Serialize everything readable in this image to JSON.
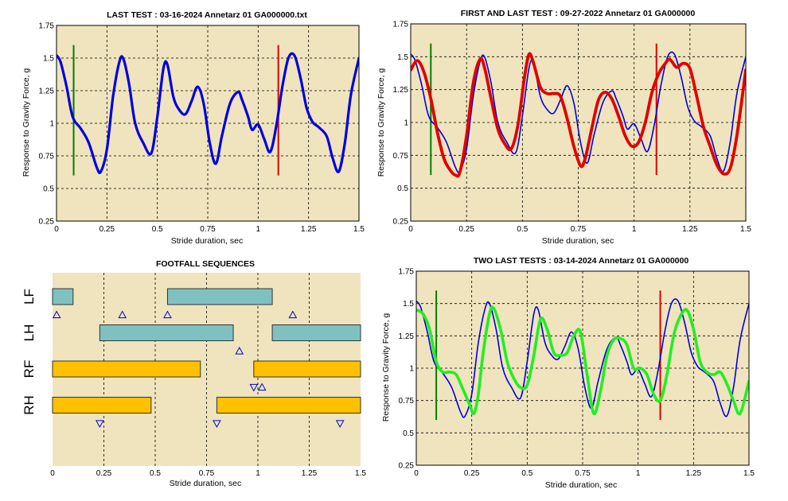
{
  "chart_data": [
    {
      "id": "p1",
      "type": "line",
      "title": "LAST TEST : 03-16-2024 Annetarz 01 GA000000.txt",
      "xlabel": "Stride duration, sec",
      "ylabel": "Response to Gravity Force, g",
      "xlim": [
        0,
        1.5
      ],
      "ylim": [
        0.25,
        1.75
      ],
      "xticks": [
        "0",
        "0.25",
        "0.5",
        "0.75",
        "1",
        "1.25",
        "1.5"
      ],
      "yticks": [
        "0.25",
        "0.5",
        "0.75",
        "1",
        "1.25",
        "1.5",
        "1.75"
      ],
      "grid": true,
      "vlines": [
        {
          "x": 0.085,
          "y": [
            0.6,
            1.6
          ],
          "color": "#008000"
        },
        {
          "x": 1.1,
          "y": [
            0.6,
            1.6
          ],
          "color": "#e00000"
        }
      ],
      "series": [
        {
          "color": "#0000dd",
          "width": 3.2,
          "x": [
            0,
            0.02,
            0.05,
            0.08,
            0.12,
            0.16,
            0.2,
            0.22,
            0.25,
            0.28,
            0.31,
            0.33,
            0.36,
            0.39,
            0.43,
            0.47,
            0.5,
            0.53,
            0.55,
            0.58,
            0.61,
            0.64,
            0.67,
            0.7,
            0.73,
            0.76,
            0.79,
            0.82,
            0.86,
            0.9,
            0.92,
            0.95,
            0.97,
            1.0,
            1.03,
            1.06,
            1.09,
            1.12,
            1.15,
            1.18,
            1.21,
            1.24,
            1.27,
            1.3,
            1.34,
            1.37,
            1.4,
            1.43,
            1.46,
            1.5
          ],
          "y": [
            1.52,
            1.47,
            1.28,
            1.05,
            0.96,
            0.85,
            0.66,
            0.63,
            0.8,
            1.2,
            1.46,
            1.5,
            1.3,
            1.0,
            0.85,
            0.77,
            1.05,
            1.42,
            1.45,
            1.2,
            1.1,
            1.07,
            1.17,
            1.28,
            1.15,
            0.85,
            0.69,
            0.9,
            1.15,
            1.24,
            1.18,
            1.05,
            0.95,
            0.99,
            0.88,
            0.78,
            0.98,
            1.28,
            1.5,
            1.52,
            1.35,
            1.12,
            1.01,
            0.97,
            0.9,
            0.73,
            0.63,
            0.85,
            1.22,
            1.5
          ]
        }
      ]
    },
    {
      "id": "p2",
      "type": "line",
      "title": "FIRST AND LAST TEST : 09-27-2022 Annetarz 01 GA000000",
      "xlabel": "Stride duration, sec",
      "ylabel": "Response to Gravity Force, g",
      "xlim": [
        0,
        1.5
      ],
      "ylim": [
        0.25,
        1.75
      ],
      "xticks": [
        "0",
        "0.25",
        "0.5",
        "0.75",
        "1",
        "1.25",
        "1.5"
      ],
      "yticks": [
        "0.25",
        "0.5",
        "0.75",
        "1",
        "1.25",
        "1.5",
        "1.75"
      ],
      "grid": true,
      "vlines": [
        {
          "x": 0.09,
          "y": [
            0.6,
            1.6
          ],
          "color": "#008000"
        },
        {
          "x": 1.1,
          "y": [
            0.6,
            1.6
          ],
          "color": "#e00000"
        }
      ],
      "series": [
        {
          "color": "#0000dd",
          "width": 1.6,
          "x": [
            0,
            0.02,
            0.05,
            0.08,
            0.12,
            0.16,
            0.2,
            0.22,
            0.25,
            0.28,
            0.31,
            0.33,
            0.36,
            0.39,
            0.43,
            0.47,
            0.5,
            0.53,
            0.55,
            0.58,
            0.61,
            0.64,
            0.67,
            0.7,
            0.73,
            0.76,
            0.79,
            0.82,
            0.86,
            0.9,
            0.92,
            0.95,
            0.97,
            1.0,
            1.03,
            1.06,
            1.09,
            1.12,
            1.15,
            1.18,
            1.21,
            1.24,
            1.27,
            1.3,
            1.34,
            1.37,
            1.4,
            1.43,
            1.46,
            1.5
          ],
          "y": [
            1.52,
            1.47,
            1.28,
            1.05,
            0.96,
            0.85,
            0.66,
            0.63,
            0.8,
            1.2,
            1.46,
            1.5,
            1.3,
            1.0,
            0.85,
            0.77,
            1.05,
            1.42,
            1.45,
            1.2,
            1.1,
            1.07,
            1.17,
            1.28,
            1.15,
            0.85,
            0.69,
            0.9,
            1.15,
            1.24,
            1.18,
            1.05,
            0.95,
            0.99,
            0.88,
            0.78,
            0.98,
            1.28,
            1.5,
            1.52,
            1.35,
            1.12,
            1.01,
            0.97,
            0.9,
            0.73,
            0.63,
            0.85,
            1.22,
            1.5
          ]
        },
        {
          "color": "#e00000",
          "width": 3.8,
          "x": [
            0,
            0.03,
            0.06,
            0.09,
            0.12,
            0.15,
            0.18,
            0.2,
            0.22,
            0.25,
            0.28,
            0.31,
            0.33,
            0.36,
            0.39,
            0.42,
            0.45,
            0.48,
            0.51,
            0.53,
            0.55,
            0.58,
            0.61,
            0.64,
            0.67,
            0.7,
            0.73,
            0.76,
            0.78,
            0.81,
            0.84,
            0.87,
            0.9,
            0.93,
            0.96,
            0.99,
            1.02,
            1.05,
            1.08,
            1.11,
            1.14,
            1.16,
            1.19,
            1.22,
            1.25,
            1.28,
            1.31,
            1.34,
            1.37,
            1.4,
            1.43,
            1.46,
            1.5
          ],
          "y": [
            1.4,
            1.47,
            1.38,
            1.18,
            0.92,
            0.72,
            0.63,
            0.6,
            0.62,
            0.9,
            1.3,
            1.48,
            1.42,
            1.18,
            0.95,
            0.84,
            0.8,
            0.98,
            1.35,
            1.52,
            1.45,
            1.27,
            1.22,
            1.22,
            1.2,
            1.03,
            0.82,
            0.67,
            0.72,
            0.95,
            1.17,
            1.23,
            1.18,
            1.05,
            0.9,
            0.82,
            0.85,
            1.0,
            1.23,
            1.37,
            1.45,
            1.48,
            1.42,
            1.45,
            1.41,
            1.2,
            0.97,
            0.82,
            0.68,
            0.61,
            0.65,
            0.9,
            1.4
          ]
        }
      ]
    },
    {
      "id": "p3",
      "type": "bar",
      "title": "FOOTFALL SEQUENCES",
      "xlabel": "Stride duration, sec",
      "xlim": [
        0,
        1.5
      ],
      "xticks": [
        "0",
        "0.25",
        "0.5",
        "0.75",
        "1",
        "1.25",
        "1.5"
      ],
      "grid": "vertical",
      "categories": [
        "LF",
        "LH",
        "RF",
        "RH"
      ],
      "bars": [
        {
          "limb": "LF",
          "start": 0,
          "end": 0.1,
          "color": "#7fc1c1"
        },
        {
          "limb": "LF",
          "start": 0.56,
          "end": 1.07,
          "color": "#7fc1c1"
        },
        {
          "limb": "LH",
          "start": 0.23,
          "end": 0.88,
          "color": "#7fc1c1"
        },
        {
          "limb": "LH",
          "start": 1.07,
          "end": 1.5,
          "color": "#7fc1c1"
        },
        {
          "limb": "RF",
          "start": 0,
          "end": 0.72,
          "color": "#ffc000"
        },
        {
          "limb": "RF",
          "start": 0.98,
          "end": 1.5,
          "color": "#ffc000"
        },
        {
          "limb": "RH",
          "start": 0,
          "end": 0.48,
          "color": "#ffc000"
        },
        {
          "limb": "RH",
          "start": 0.8,
          "end": 1.5,
          "color": "#ffc000"
        }
      ],
      "markers": [
        {
          "x": 0.02,
          "row": "LF",
          "dir": "up"
        },
        {
          "x": 0.34,
          "row": "LF",
          "dir": "up"
        },
        {
          "x": 0.56,
          "row": "LF",
          "dir": "up"
        },
        {
          "x": 1.17,
          "row": "LF",
          "dir": "up"
        },
        {
          "x": 0.91,
          "row": "LH",
          "dir": "up"
        },
        {
          "x": 1.02,
          "row": "RF",
          "dir": "up"
        },
        {
          "x": 0.98,
          "row": "RF",
          "dir": "down"
        },
        {
          "x": 0.23,
          "row": "RH",
          "dir": "down"
        },
        {
          "x": 0.8,
          "row": "RH",
          "dir": "down"
        },
        {
          "x": 1.4,
          "row": "RH",
          "dir": "down"
        }
      ]
    },
    {
      "id": "p4",
      "type": "line",
      "title": "TWO LAST TESTS : 03-14-2024 Annetarz 01 GA000000",
      "xlabel": "Stride duration, sec",
      "ylabel": "Response to Gravity Force, g",
      "xlim": [
        0,
        1.5
      ],
      "ylim": [
        0.25,
        1.75
      ],
      "xticks": [
        "0",
        "0.25",
        "0.5",
        "0.75",
        "1",
        "1.25",
        "1.5"
      ],
      "yticks": [
        "0.25",
        "0.5",
        "0.75",
        "1",
        "1.25",
        "1.5",
        "1.75"
      ],
      "grid": true,
      "vlines": [
        {
          "x": 0.09,
          "y": [
            0.6,
            1.6
          ],
          "color": "#008000"
        },
        {
          "x": 1.1,
          "y": [
            0.6,
            1.6
          ],
          "color": "#e00000"
        }
      ],
      "series": [
        {
          "color": "#0000dd",
          "width": 1.6,
          "x": [
            0,
            0.02,
            0.05,
            0.08,
            0.12,
            0.16,
            0.2,
            0.22,
            0.25,
            0.28,
            0.31,
            0.33,
            0.36,
            0.39,
            0.43,
            0.47,
            0.5,
            0.53,
            0.55,
            0.58,
            0.61,
            0.64,
            0.67,
            0.7,
            0.73,
            0.76,
            0.79,
            0.82,
            0.86,
            0.9,
            0.92,
            0.95,
            0.97,
            1.0,
            1.03,
            1.06,
            1.09,
            1.12,
            1.15,
            1.18,
            1.21,
            1.24,
            1.27,
            1.3,
            1.34,
            1.37,
            1.4,
            1.43,
            1.46,
            1.5
          ],
          "y": [
            1.52,
            1.47,
            1.28,
            1.05,
            0.96,
            0.85,
            0.66,
            0.63,
            0.8,
            1.2,
            1.46,
            1.5,
            1.3,
            1.0,
            0.85,
            0.77,
            1.05,
            1.42,
            1.45,
            1.2,
            1.1,
            1.07,
            1.17,
            1.28,
            1.15,
            0.85,
            0.69,
            0.9,
            1.15,
            1.24,
            1.18,
            1.05,
            0.95,
            0.99,
            0.88,
            0.78,
            0.98,
            1.28,
            1.5,
            1.52,
            1.35,
            1.12,
            1.01,
            0.97,
            0.9,
            0.73,
            0.63,
            0.85,
            1.22,
            1.5
          ]
        },
        {
          "color": "#22ee22",
          "width": 3.6,
          "x": [
            0,
            0.03,
            0.06,
            0.09,
            0.12,
            0.15,
            0.18,
            0.21,
            0.24,
            0.26,
            0.28,
            0.3,
            0.33,
            0.35,
            0.38,
            0.41,
            0.44,
            0.47,
            0.5,
            0.53,
            0.56,
            0.59,
            0.62,
            0.65,
            0.68,
            0.71,
            0.74,
            0.77,
            0.8,
            0.83,
            0.86,
            0.89,
            0.92,
            0.95,
            0.98,
            1.01,
            1.04,
            1.07,
            1.1,
            1.13,
            1.16,
            1.19,
            1.22,
            1.25,
            1.28,
            1.31,
            1.34,
            1.37,
            1.4,
            1.43,
            1.46,
            1.5
          ],
          "y": [
            1.45,
            1.42,
            1.3,
            1.05,
            0.97,
            0.97,
            0.95,
            0.84,
            0.72,
            0.65,
            0.8,
            1.1,
            1.42,
            1.46,
            1.3,
            1.05,
            0.92,
            0.85,
            0.87,
            1.1,
            1.38,
            1.3,
            1.12,
            1.1,
            1.12,
            1.25,
            1.28,
            0.95,
            0.65,
            0.82,
            1.1,
            1.22,
            1.23,
            1.18,
            1.0,
            1.0,
            0.95,
            0.8,
            0.75,
            0.95,
            1.25,
            1.4,
            1.45,
            1.3,
            1.05,
            0.97,
            0.95,
            0.97,
            0.88,
            0.75,
            0.65,
            0.9
          ]
        }
      ]
    }
  ]
}
